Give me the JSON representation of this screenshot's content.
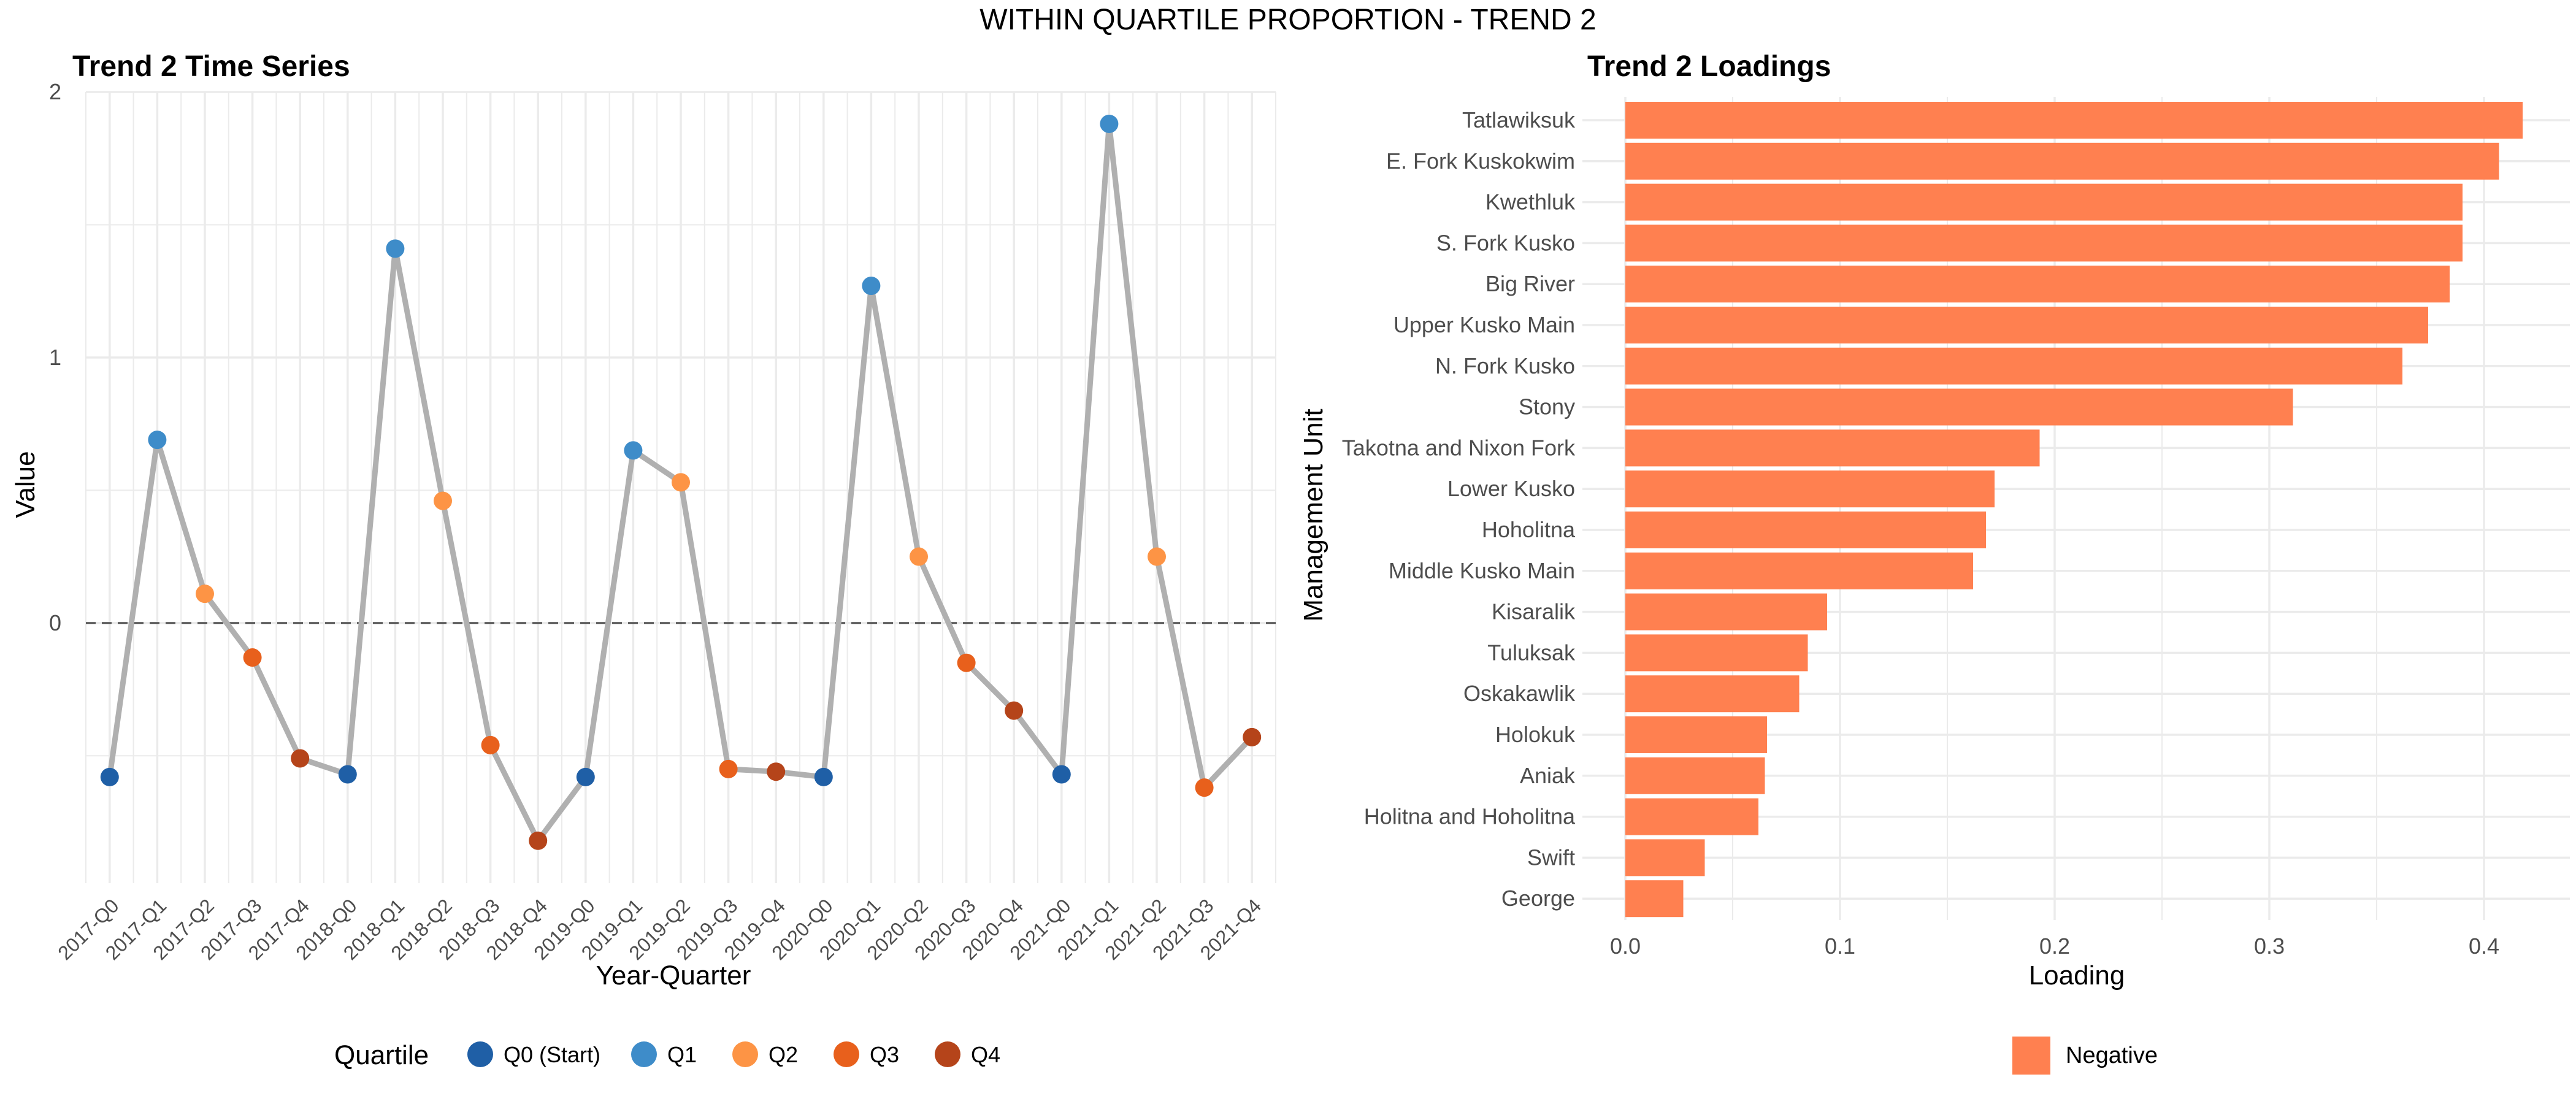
{
  "figure_title": "WITHIN QUARTILE PROPORTION - TREND 2",
  "colors": {
    "grid": "#ebebeb",
    "line": "#b0b0b0",
    "zero_line": "#555555",
    "bar": "#ff8050",
    "text": "#4d4d4d"
  },
  "chart_data": [
    {
      "type": "line",
      "title": "Trend 2 Time Series",
      "xlabel": "Year-Quarter",
      "ylabel": "Value",
      "ylim": [
        -0.98,
        2.0
      ],
      "yticks": [
        0,
        1,
        2
      ],
      "grid": true,
      "x": [
        "2017-Q0",
        "2017-Q1",
        "2017-Q2",
        "2017-Q3",
        "2017-Q4",
        "2018-Q0",
        "2018-Q1",
        "2018-Q2",
        "2018-Q3",
        "2018-Q4",
        "2019-Q0",
        "2019-Q1",
        "2019-Q2",
        "2019-Q3",
        "2019-Q4",
        "2020-Q0",
        "2020-Q1",
        "2020-Q2",
        "2020-Q3",
        "2020-Q4",
        "2021-Q0",
        "2021-Q1",
        "2021-Q2",
        "2021-Q3",
        "2021-Q4"
      ],
      "values": [
        -0.58,
        0.69,
        0.11,
        -0.13,
        -0.51,
        -0.57,
        1.41,
        0.46,
        -0.46,
        -0.82,
        -0.58,
        0.65,
        0.53,
        -0.55,
        -0.56,
        -0.58,
        1.27,
        0.25,
        -0.15,
        -0.33,
        -0.57,
        1.88,
        0.25,
        -0.62,
        -0.43
      ],
      "quartile": [
        "Q0 (Start)",
        "Q1",
        "Q2",
        "Q3",
        "Q4",
        "Q0 (Start)",
        "Q1",
        "Q2",
        "Q3",
        "Q4",
        "Q0 (Start)",
        "Q1",
        "Q2",
        "Q3",
        "Q4",
        "Q0 (Start)",
        "Q1",
        "Q2",
        "Q3",
        "Q4",
        "Q0 (Start)",
        "Q1",
        "Q2",
        "Q3",
        "Q4"
      ],
      "reference_line": 0,
      "legend": {
        "title": "Quartile",
        "placement": "bottom",
        "items": [
          {
            "label": "Q0 (Start)",
            "color": "#1f5fa6"
          },
          {
            "label": "Q1",
            "color": "#3e8cc9"
          },
          {
            "label": "Q2",
            "color": "#fd9445"
          },
          {
            "label": "Q3",
            "color": "#e8601c"
          },
          {
            "label": "Q4",
            "color": "#b5441a"
          }
        ]
      }
    },
    {
      "type": "bar",
      "orientation": "horizontal",
      "title": "Trend 2 Loadings",
      "xlabel": "Loading",
      "ylabel": "Management Unit",
      "xlim": [
        -0.02,
        0.44
      ],
      "xticks": [
        0.0,
        0.1,
        0.2,
        0.3,
        0.4
      ],
      "xtick_labels": [
        "0.0",
        "0.1",
        "0.2",
        "0.3",
        "0.4"
      ],
      "grid": true,
      "categories": [
        "Tatlawiksuk",
        "E. Fork Kuskokwim",
        "Kwethluk",
        "S. Fork Kusko",
        "Big River",
        "Upper Kusko Main",
        "N. Fork Kusko",
        "Stony",
        "Takotna and Nixon Fork",
        "Lower Kusko",
        "Hoholitna",
        "Middle Kusko Main",
        "Kisaralik",
        "Tuluksak",
        "Oskakawlik",
        "Holokuk",
        "Aniak",
        "Holitna and Hoholitna",
        "Swift",
        "George"
      ],
      "values": [
        0.418,
        0.407,
        0.39,
        0.39,
        0.384,
        0.374,
        0.362,
        0.311,
        0.193,
        0.172,
        0.168,
        0.162,
        0.094,
        0.085,
        0.081,
        0.066,
        0.065,
        0.062,
        0.037,
        0.027
      ],
      "legend": {
        "placement": "bottom",
        "items": [
          {
            "label": "Negative",
            "color": "#ff8050"
          }
        ]
      }
    }
  ]
}
